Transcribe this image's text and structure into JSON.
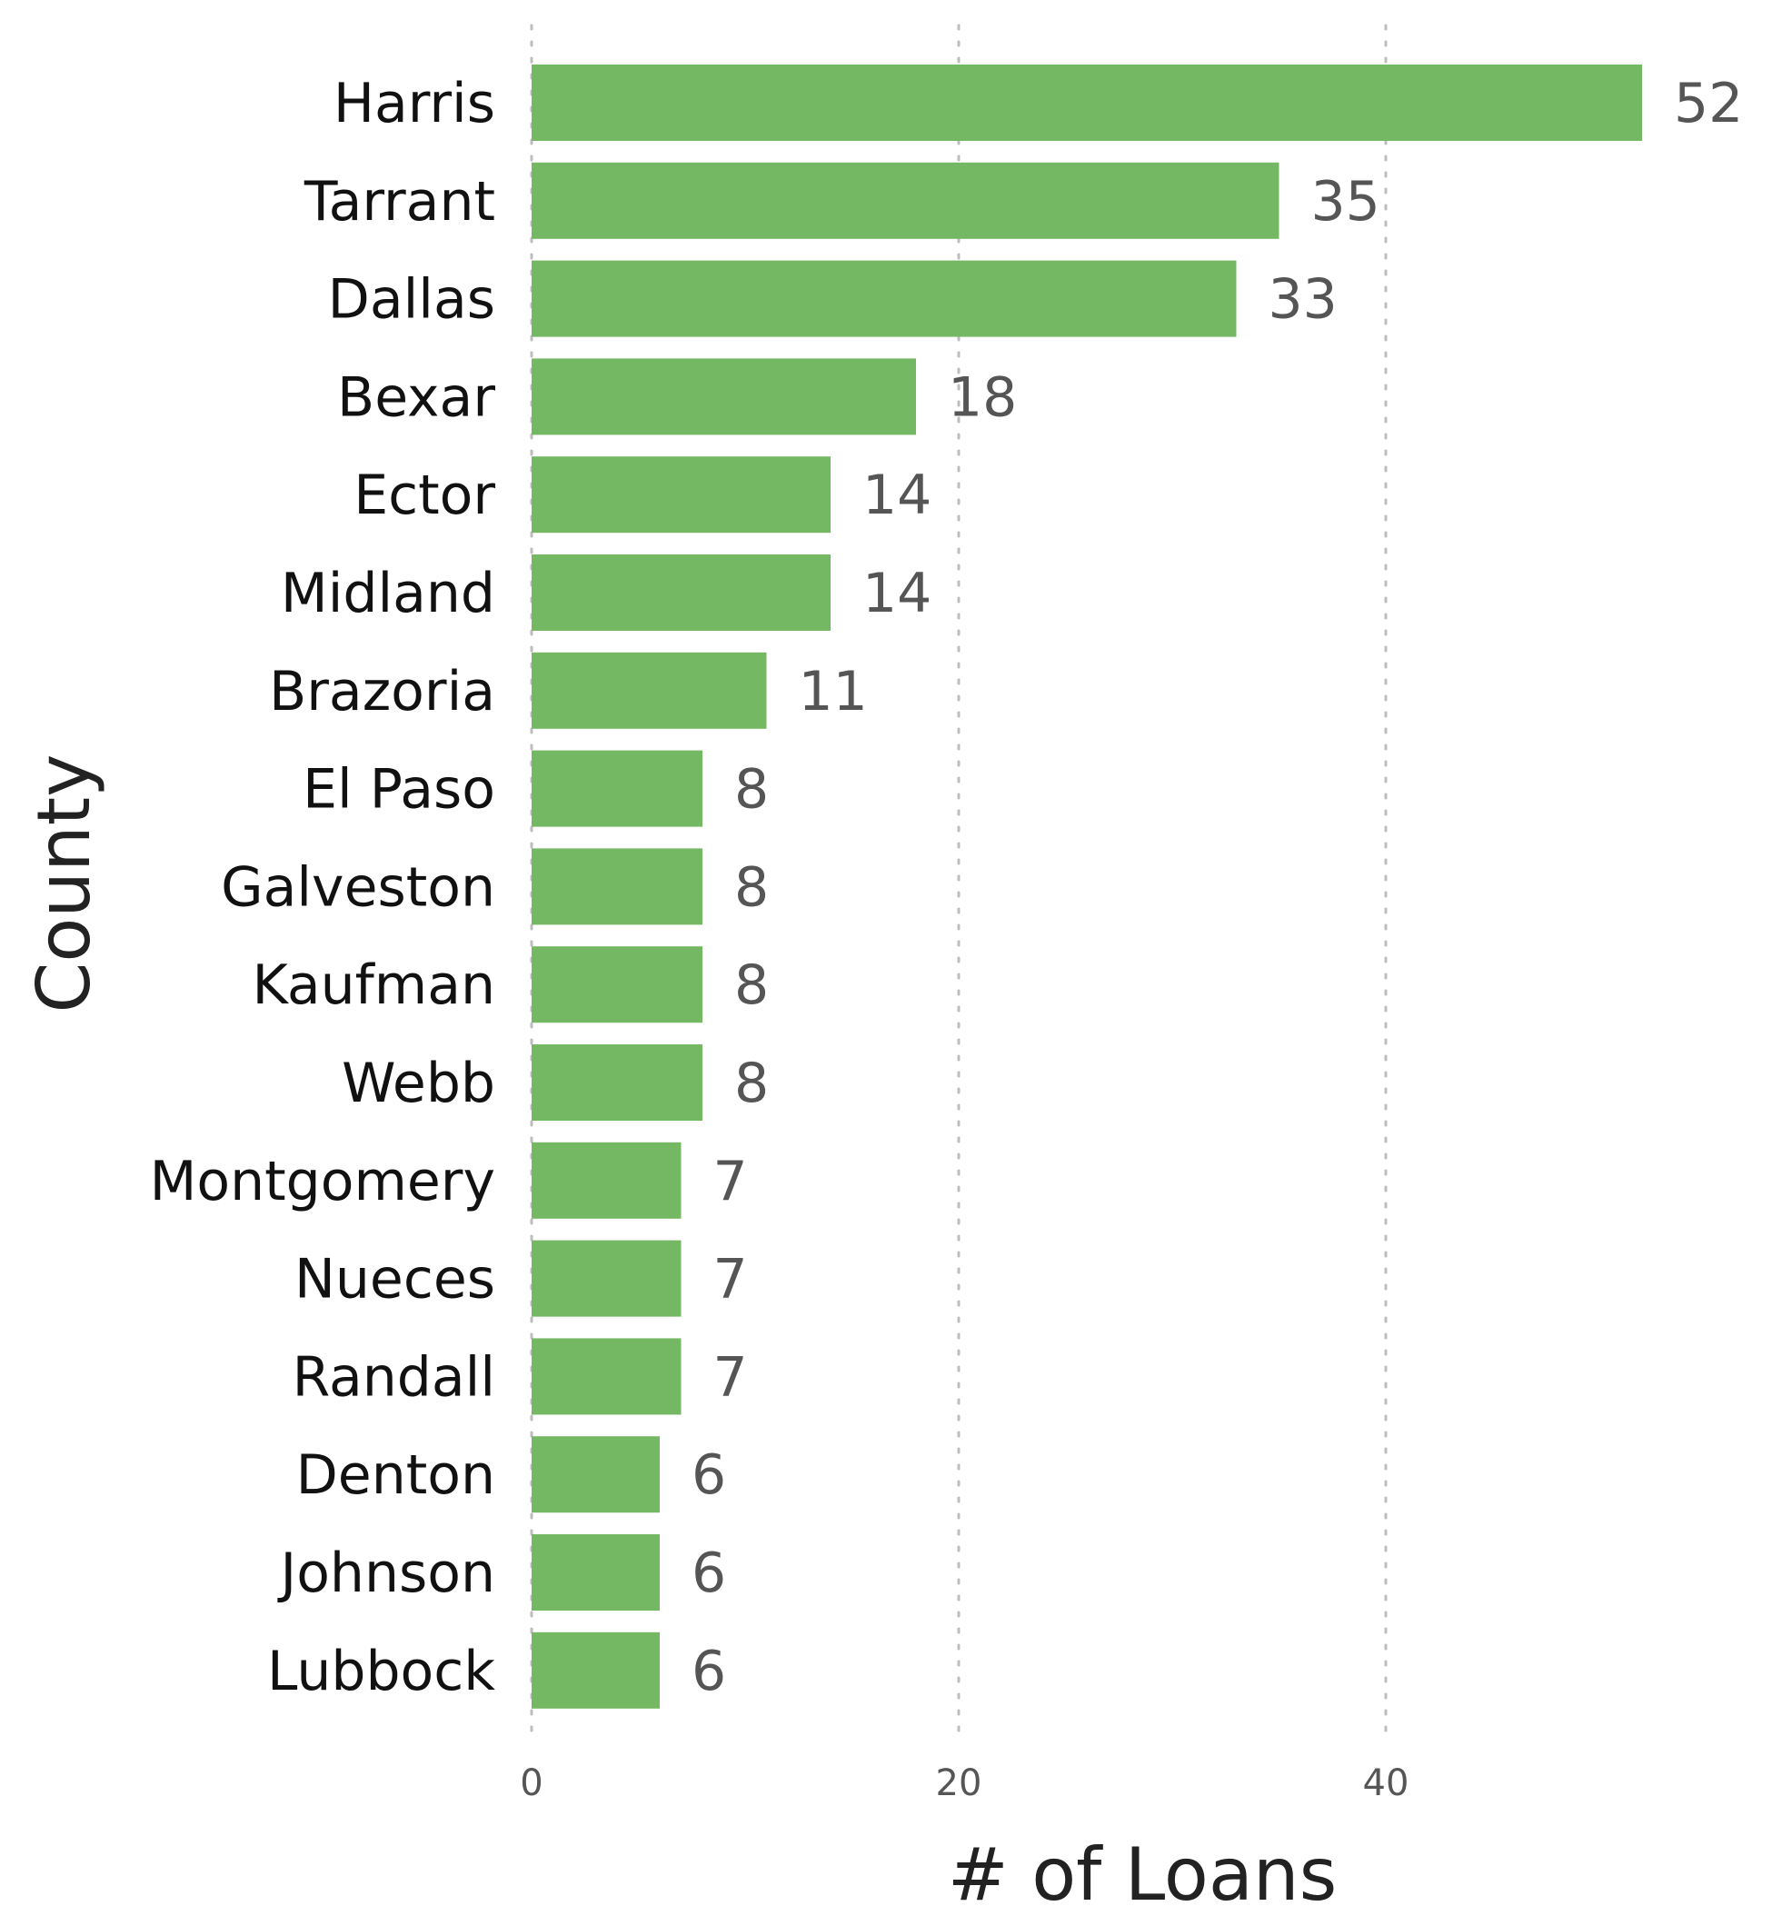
{
  "chart_data": {
    "type": "bar",
    "orientation": "horizontal",
    "categories": [
      "Harris",
      "Tarrant",
      "Dallas",
      "Bexar",
      "Ector",
      "Midland",
      "Brazoria",
      "El Paso",
      "Galveston",
      "Kaufman",
      "Webb",
      "Montgomery",
      "Nueces",
      "Randall",
      "Denton",
      "Johnson",
      "Lubbock"
    ],
    "values": [
      52,
      35,
      33,
      18,
      14,
      14,
      11,
      8,
      8,
      8,
      8,
      7,
      7,
      7,
      6,
      6,
      6
    ],
    "value_labels": [
      "52",
      "35",
      "33",
      "18",
      "14",
      "14",
      "11",
      "8",
      "8",
      "8",
      "8",
      "7",
      "7",
      "7",
      "6",
      "6",
      "6"
    ],
    "xlabel": "# of Loans",
    "ylabel": "County",
    "xlim": [
      0,
      56
    ],
    "x_ticks": [
      0,
      20,
      40
    ],
    "x_tick_labels": [
      "0",
      "20",
      "40"
    ],
    "grid": "vertical-dotted",
    "legend": "none",
    "bar_color": "#75b863"
  }
}
